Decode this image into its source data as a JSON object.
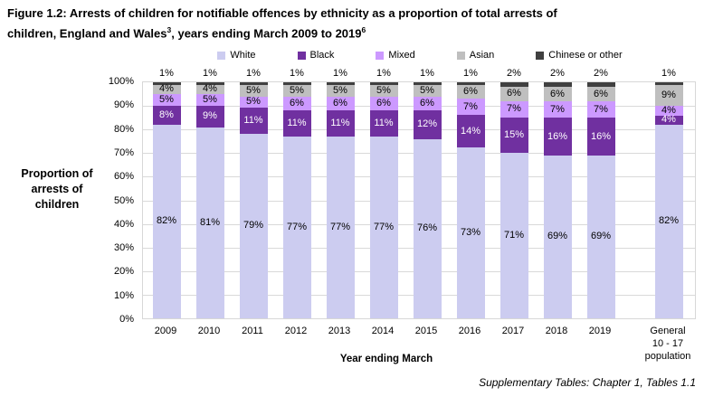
{
  "figure": {
    "title_line1": "Figure 1.2: Arrests of children for notifiable offences by ethnicity as a proportion of total arrests of",
    "title_line2_pre": "children, England and Wales",
    "title_sup1": "3",
    "title_line2_mid": ", years ending March 2009 to 2019",
    "title_sup2": "6",
    "source_note": "Supplementary Tables: Chapter 1, Tables 1.1"
  },
  "chart_data": {
    "type": "bar",
    "stacked": true,
    "title": "Arrests of children for notifiable offences by ethnicity as a proportion of total arrests of children, England and Wales, years ending March 2009 to 2019",
    "xlabel": "Year ending March",
    "ylabel": "Proportion of arrests of children",
    "ylabel_lines": [
      "Proportion of",
      "arrests of",
      "children"
    ],
    "ylim": [
      0,
      100
    ],
    "yticks": [
      "0%",
      "10%",
      "20%",
      "30%",
      "40%",
      "50%",
      "60%",
      "70%",
      "80%",
      "90%",
      "100%"
    ],
    "grid": "horizontal",
    "legend_position": "top",
    "categories": [
      "2009",
      "2010",
      "2011",
      "2012",
      "2013",
      "2014",
      "2015",
      "2016",
      "2017",
      "2018",
      "2019",
      "General 10 - 17 population"
    ],
    "x_tick_lines": [
      [
        "2009"
      ],
      [
        "2010"
      ],
      [
        "2011"
      ],
      [
        "2012"
      ],
      [
        "2013"
      ],
      [
        "2014"
      ],
      [
        "2015"
      ],
      [
        "2016"
      ],
      [
        "2017"
      ],
      [
        "2018"
      ],
      [
        "2019"
      ],
      [
        "General",
        "10 - 17",
        "population"
      ]
    ],
    "series": [
      {
        "name": "White",
        "color": "#ccccf0",
        "label_color": "#000000",
        "values": [
          82,
          81,
          79,
          77,
          77,
          77,
          76,
          73,
          71,
          69,
          69,
          82
        ]
      },
      {
        "name": "Black",
        "color": "#7030a0",
        "label_color": "#ffffff",
        "values": [
          8,
          9,
          11,
          11,
          11,
          11,
          12,
          14,
          15,
          16,
          16,
          4
        ]
      },
      {
        "name": "Mixed",
        "color": "#cc99ff",
        "label_color": "#000000",
        "values": [
          5,
          5,
          5,
          6,
          6,
          6,
          6,
          7,
          7,
          7,
          7,
          4
        ]
      },
      {
        "name": "Asian",
        "color": "#bfbfbf",
        "label_color": "#000000",
        "values": [
          4,
          4,
          5,
          5,
          5,
          5,
          5,
          6,
          6,
          6,
          6,
          9
        ]
      },
      {
        "name": "Chinese or other",
        "color": "#404040",
        "label_color": "#000000",
        "labels_position": "outside-top",
        "values": [
          1,
          1,
          1,
          1,
          1,
          1,
          1,
          1,
          2,
          2,
          2,
          1
        ]
      }
    ]
  }
}
